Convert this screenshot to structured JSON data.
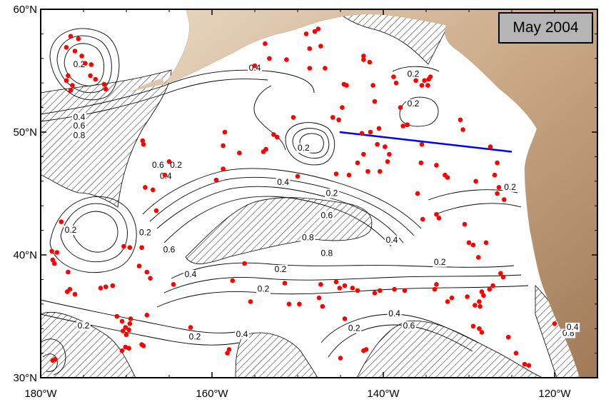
{
  "map": {
    "date_label": "May 2004",
    "lon_ticks": [
      {
        "lon": -180,
        "label": "180°W"
      },
      {
        "lon": -160,
        "label": "160°W"
      },
      {
        "lon": -140,
        "label": "140°W"
      },
      {
        "lon": -120,
        "label": "120°W"
      }
    ],
    "lat_ticks": [
      {
        "lat": 60,
        "label": "60°N"
      },
      {
        "lat": 50,
        "label": "50°N"
      },
      {
        "lat": 40,
        "label": "40°N"
      },
      {
        "lat": 30,
        "label": "30°N"
      }
    ],
    "lon_range": [
      -180,
      -115
    ],
    "lat_range": [
      30,
      60
    ],
    "colors": {
      "stations": "#ff0000",
      "section_line": "#0000ff",
      "land": "#c8a987",
      "date_box": "#b5b5b5"
    },
    "section_line": [
      [
        -145.1,
        50.0
      ],
      [
        -125.0,
        48.4
      ]
    ],
    "contour_labels": [
      {
        "lon": -175.5,
        "lat": 55.3,
        "text": "0.2"
      },
      {
        "lon": -155.0,
        "lat": 55.0,
        "text": "0.4"
      },
      {
        "lon": -175.5,
        "lat": 51.0,
        "text": "0.4"
      },
      {
        "lon": -175.5,
        "lat": 50.3,
        "text": "0.6"
      },
      {
        "lon": -175.5,
        "lat": 49.5,
        "text": "0.8"
      },
      {
        "lon": -166.3,
        "lat": 47.1,
        "text": "0.6"
      },
      {
        "lon": -165.4,
        "lat": 46.2,
        "text": "0.4"
      },
      {
        "lon": -164.2,
        "lat": 47.1,
        "text": "0.2"
      },
      {
        "lon": -149.3,
        "lat": 48.5,
        "text": "0.2"
      },
      {
        "lon": -151.7,
        "lat": 45.7,
        "text": "0.4"
      },
      {
        "lon": -146.0,
        "lat": 44.8,
        "text": "0.2"
      },
      {
        "lon": -146.6,
        "lat": 43.0,
        "text": "0.6"
      },
      {
        "lon": -148.8,
        "lat": 41.2,
        "text": "0.8"
      },
      {
        "lon": -146.6,
        "lat": 39.9,
        "text": "0.8"
      },
      {
        "lon": -165.0,
        "lat": 40.2,
        "text": "0.6"
      },
      {
        "lon": -167.8,
        "lat": 41.6,
        "text": "0.2"
      },
      {
        "lon": -176.5,
        "lat": 41.8,
        "text": "0.2"
      },
      {
        "lon": -162.5,
        "lat": 38.2,
        "text": "0.4"
      },
      {
        "lon": -152.0,
        "lat": 38.6,
        "text": "0.2"
      },
      {
        "lon": -154.0,
        "lat": 37.0,
        "text": "0.2"
      },
      {
        "lon": -139.0,
        "lat": 41.0,
        "text": "0.4"
      },
      {
        "lon": -133.4,
        "lat": 39.2,
        "text": "0.2"
      },
      {
        "lon": -175.0,
        "lat": 34.0,
        "text": "0.2"
      },
      {
        "lon": -162.0,
        "lat": 33.1,
        "text": "0.2"
      },
      {
        "lon": -156.5,
        "lat": 33.3,
        "text": "0.4"
      },
      {
        "lon": -143.4,
        "lat": 33.8,
        "text": "0.2"
      },
      {
        "lon": -138.7,
        "lat": 35.0,
        "text": "0.4"
      },
      {
        "lon": -137.0,
        "lat": 34.0,
        "text": "0.6"
      },
      {
        "lon": -136.5,
        "lat": 54.5,
        "text": "0.2"
      },
      {
        "lon": -136.5,
        "lat": 52.1,
        "text": "0.2"
      },
      {
        "lon": -125.2,
        "lat": 45.3,
        "text": "0.2"
      },
      {
        "lon": -118.4,
        "lat": 33.4,
        "text": "0.8"
      },
      {
        "lon": -117.9,
        "lat": 33.9,
        "text": "0.4"
      }
    ],
    "stations": [
      [
        -176.5,
        57.8
      ],
      [
        -175.6,
        57.6
      ],
      [
        -177.0,
        56.9
      ],
      [
        -176.0,
        56.6
      ],
      [
        -175.2,
        56.2
      ],
      [
        -174.8,
        55.6
      ],
      [
        -174.1,
        55.5
      ],
      [
        -176.8,
        54.6
      ],
      [
        -177.0,
        54.2
      ],
      [
        -174.2,
        54.6
      ],
      [
        -173.6,
        54.3
      ],
      [
        -176.3,
        53.8
      ],
      [
        -176.5,
        53.4
      ],
      [
        -172.6,
        53.9
      ],
      [
        -172.4,
        53.5
      ],
      [
        -168.1,
        49.3
      ],
      [
        -168.0,
        49.0
      ],
      [
        -165.0,
        47.6
      ],
      [
        -165.5,
        46.5
      ],
      [
        -167.8,
        45.5
      ],
      [
        -166.9,
        45.3
      ],
      [
        -166.5,
        43.6
      ],
      [
        -159.5,
        46.1
      ],
      [
        -158.7,
        47.0
      ],
      [
        -158.5,
        50.0
      ],
      [
        -158.7,
        48.9
      ],
      [
        -156.8,
        48.3
      ],
      [
        -150.5,
        51.2
      ],
      [
        -152.8,
        49.8
      ],
      [
        -152.4,
        49.6
      ],
      [
        -154.0,
        48.4
      ],
      [
        -153.7,
        48.6
      ],
      [
        -150.0,
        46.4
      ],
      [
        -153.8,
        57.2
      ],
      [
        -153.3,
        56.0
      ],
      [
        -155.0,
        55.4
      ],
      [
        -151.3,
        55.9
      ],
      [
        -148.6,
        56.8
      ],
      [
        -148.0,
        58.2
      ],
      [
        -147.6,
        58.4
      ],
      [
        -147.3,
        57.0
      ],
      [
        -149.0,
        58.0
      ],
      [
        -148.6,
        55.2
      ],
      [
        -146.8,
        55.2
      ],
      [
        -144.6,
        53.9
      ],
      [
        -144.3,
        53.8
      ],
      [
        -142.3,
        55.9
      ],
      [
        -141.6,
        55.7
      ],
      [
        -142.3,
        56.2
      ],
      [
        -141.2,
        53.8
      ],
      [
        -141.0,
        52.5
      ],
      [
        -138.8,
        54.5
      ],
      [
        -138.5,
        54.0
      ],
      [
        -138.0,
        52.0
      ],
      [
        -136.2,
        54.2
      ],
      [
        -135.5,
        53.8
      ],
      [
        -135.2,
        54.2
      ],
      [
        -134.7,
        54.3
      ],
      [
        -134.5,
        54.5
      ],
      [
        -134.8,
        53.8
      ],
      [
        -144.8,
        52.0
      ],
      [
        -142.5,
        49.9
      ],
      [
        -140.5,
        50.3
      ],
      [
        -141.5,
        50.0
      ],
      [
        -140.7,
        49.0
      ],
      [
        -139.8,
        48.8
      ],
      [
        -139.3,
        48.2
      ],
      [
        -139.5,
        47.6
      ],
      [
        -140.4,
        46.8
      ],
      [
        -142.3,
        48.2
      ],
      [
        -143.0,
        47.5
      ],
      [
        -145.5,
        46.6
      ],
      [
        -144.0,
        46.5
      ],
      [
        -141.8,
        46.8
      ],
      [
        -145.9,
        51.2
      ],
      [
        -145.2,
        51.0
      ],
      [
        -137.7,
        50.5
      ],
      [
        -137.2,
        50.6
      ],
      [
        -135.5,
        49.0
      ],
      [
        -135.6,
        47.5
      ],
      [
        -133.8,
        47.3
      ],
      [
        -132.8,
        46.5
      ],
      [
        -131.0,
        51.0
      ],
      [
        -130.7,
        50.2
      ],
      [
        -127.5,
        48.8
      ],
      [
        -126.7,
        47.5
      ],
      [
        -127.0,
        46.5
      ],
      [
        -126.5,
        45.5
      ],
      [
        -126.7,
        45.0
      ],
      [
        -125.9,
        44.5
      ],
      [
        -129.2,
        46.0
      ],
      [
        -132.5,
        46.3
      ],
      [
        -136.0,
        45.0
      ],
      [
        -133.8,
        43.3
      ],
      [
        -133.5,
        43.0
      ],
      [
        -135.4,
        42.9
      ],
      [
        -130.5,
        42.5
      ],
      [
        -130.0,
        41.0
      ],
      [
        -129.5,
        40.8
      ],
      [
        -128.9,
        39.8
      ],
      [
        -128.0,
        41.0
      ],
      [
        -126.3,
        38.5
      ],
      [
        -126.0,
        38.2
      ],
      [
        -127.2,
        37.5
      ],
      [
        -127.6,
        37.2
      ],
      [
        -128.5,
        37.0
      ],
      [
        -128.3,
        36.7
      ],
      [
        -128.8,
        36.2
      ],
      [
        -129.3,
        35.9
      ],
      [
        -128.7,
        35.8
      ],
      [
        -130.2,
        36.6
      ],
      [
        -133.8,
        37.6
      ],
      [
        -134.0,
        37.2
      ],
      [
        -132.0,
        36.5
      ],
      [
        -132.5,
        36.2
      ],
      [
        -137.5,
        37.1
      ],
      [
        -138.7,
        37.2
      ],
      [
        -140.4,
        37.1
      ],
      [
        -141.0,
        36.9
      ],
      [
        -143.0,
        37.1
      ],
      [
        -143.6,
        37.3
      ],
      [
        -144.5,
        37.5
      ],
      [
        -145.5,
        37.8
      ],
      [
        -147.3,
        37.6
      ],
      [
        -147.5,
        36.5
      ],
      [
        -147.1,
        35.8
      ],
      [
        -149.8,
        36.0
      ],
      [
        -151.5,
        37.7
      ],
      [
        -151.0,
        36.0
      ],
      [
        -144.5,
        34.8
      ],
      [
        -142.3,
        32.2
      ],
      [
        -142.0,
        32.3
      ],
      [
        -145.0,
        31.6
      ],
      [
        -129.5,
        34.2
      ],
      [
        -128.8,
        34.0
      ],
      [
        -128.5,
        33.7
      ],
      [
        -125.4,
        33.3
      ],
      [
        -124.5,
        32.0
      ],
      [
        -123.5,
        31.1
      ],
      [
        -123.0,
        31.0
      ],
      [
        -120.0,
        34.4
      ],
      [
        -156.2,
        39.3
      ],
      [
        -157.6,
        37.9
      ],
      [
        -155.5,
        36.2
      ],
      [
        -158.0,
        32.3
      ],
      [
        -158.2,
        32.0
      ],
      [
        -162.5,
        34.1
      ],
      [
        -167.6,
        35.1
      ],
      [
        -168.2,
        32.7
      ],
      [
        -168.0,
        32.6
      ],
      [
        -169.7,
        32.4
      ],
      [
        -170.1,
        32.5
      ],
      [
        -170.5,
        32.2
      ],
      [
        -170.0,
        33.5
      ],
      [
        -169.7,
        33.9
      ],
      [
        -170.4,
        33.8
      ],
      [
        -170.1,
        34.1
      ],
      [
        -169.6,
        34.4
      ],
      [
        -169.5,
        34.8
      ],
      [
        -170.5,
        34.6
      ],
      [
        -171.1,
        35.0
      ],
      [
        -167.2,
        38.1
      ],
      [
        -167.6,
        38.6
      ],
      [
        -168.5,
        39.1
      ],
      [
        -168.2,
        40.6
      ],
      [
        -169.6,
        40.6
      ],
      [
        -170.3,
        40.7
      ],
      [
        -172.4,
        37.4
      ],
      [
        -173.0,
        37.3
      ],
      [
        -171.6,
        37.5
      ],
      [
        -176.0,
        36.8
      ],
      [
        -176.6,
        37.2
      ],
      [
        -176.9,
        37.0
      ],
      [
        -176.8,
        38.6
      ],
      [
        -178.4,
        39.3
      ],
      [
        -178.6,
        39.6
      ],
      [
        -178.7,
        40.3
      ],
      [
        -178.1,
        40.2
      ],
      [
        -177.6,
        42.7
      ],
      [
        -178.3,
        31.5
      ],
      [
        -178.6,
        31.4
      ],
      [
        -164.5,
        37.6
      ],
      [
        -145.1,
        37.3
      ]
    ]
  }
}
